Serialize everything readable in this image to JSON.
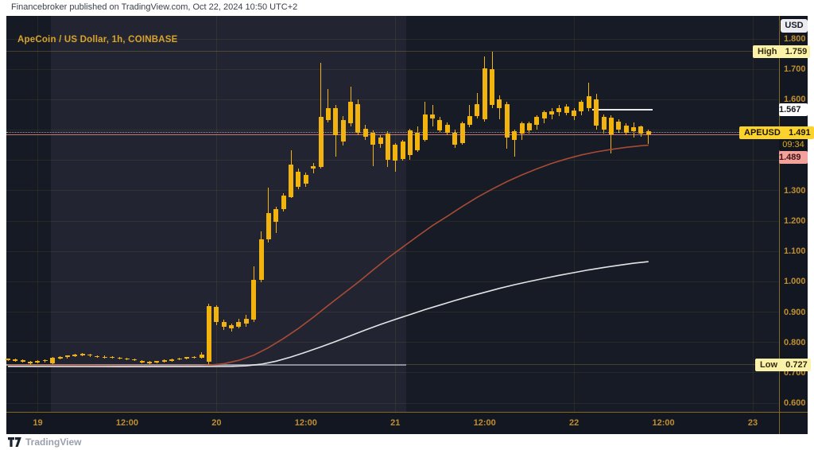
{
  "attribution": "Financebroker published on TradingView.com, Oct 22, 2024 10:50 UTC+2",
  "watermark": "TradingView",
  "header": {
    "title": "ApeCoin / US Dollar, 1h, COINBASE",
    "currency_button": "USD"
  },
  "axis_labels": {
    "high": {
      "text": "High",
      "value": "1.759"
    },
    "low": {
      "text": "Low",
      "value": "0.727"
    },
    "symbol": {
      "text": "APEUSD",
      "value": "1.491",
      "countdown": "09:34"
    },
    "white_line": "1.567",
    "pink_line": "1.489"
  },
  "colors": {
    "panel_bg": "#131722",
    "band_dark_left": "#151a24",
    "band_light": "#222531",
    "band_dark_right": "#161b25",
    "candle": "#f2b30e",
    "ma_fast": "#a84b35",
    "ma_slow": "#e4e4e6",
    "grid": "rgba(196,160,70,0.10)",
    "axis_text": "#c08f2f",
    "low_ray": "#8b8e98",
    "faint_level": "rgba(196,160,70,0.35)",
    "white_segment": "#e8e8e8",
    "pink_level": "#e8837d",
    "current_price": "#9aa0ae"
  },
  "chart_data": {
    "type": "candlestick",
    "title": "ApeCoin / US Dollar, 1h, COINBASE",
    "symbol": "APEUSD",
    "exchange": "COINBASE",
    "interval": "1h",
    "legend_position": "none",
    "grid": true,
    "price_axis": {
      "min": 0.6,
      "max": 1.8,
      "ticks": [
        "1.800",
        "1.700",
        "1.600",
        "1.500",
        "1.400",
        "1.300",
        "1.200",
        "1.100",
        "1.000",
        "0.900",
        "0.800",
        "0.700",
        "0.600"
      ]
    },
    "time_axis": {
      "ticks": [
        {
          "label": "19",
          "h": 4
        },
        {
          "label": "12:00",
          "h": 16
        },
        {
          "label": "20",
          "h": 28
        },
        {
          "label": "12:00",
          "h": 40
        },
        {
          "label": "21",
          "h": 52
        },
        {
          "label": "12:00",
          "h": 64
        },
        {
          "label": "22",
          "h": 76
        },
        {
          "label": "12:00",
          "h": 88
        },
        {
          "label": "23",
          "h": 100
        }
      ]
    },
    "stats": {
      "high": 1.759,
      "low": 0.727,
      "last": 1.491,
      "bar_countdown": "09:34"
    },
    "candles_format": [
      "high",
      "low",
      "body_top",
      "body_bottom"
    ],
    "candles": [
      [
        0.748,
        0.738,
        0.746,
        0.741
      ],
      [
        0.747,
        0.736,
        0.744,
        0.739
      ],
      [
        0.745,
        0.733,
        0.741,
        0.736
      ],
      [
        0.74,
        0.727,
        0.737,
        0.731
      ],
      [
        0.742,
        0.73,
        0.74,
        0.734
      ],
      [
        0.744,
        0.734,
        0.742,
        0.738
      ],
      [
        0.752,
        0.729,
        0.75,
        0.731
      ],
      [
        0.755,
        0.744,
        0.753,
        0.747
      ],
      [
        0.758,
        0.748,
        0.757,
        0.751
      ],
      [
        0.762,
        0.752,
        0.76,
        0.755
      ],
      [
        0.764,
        0.754,
        0.762,
        0.757
      ],
      [
        0.763,
        0.753,
        0.76,
        0.756
      ],
      [
        0.758,
        0.749,
        0.755,
        0.751
      ],
      [
        0.756,
        0.747,
        0.753,
        0.75
      ],
      [
        0.754,
        0.746,
        0.752,
        0.749
      ],
      [
        0.752,
        0.744,
        0.75,
        0.747
      ],
      [
        0.75,
        0.742,
        0.748,
        0.745
      ],
      [
        0.748,
        0.738,
        0.745,
        0.741
      ],
      [
        0.742,
        0.73,
        0.739,
        0.733
      ],
      [
        0.738,
        0.728,
        0.735,
        0.73
      ],
      [
        0.74,
        0.73,
        0.738,
        0.733
      ],
      [
        0.744,
        0.734,
        0.742,
        0.737
      ],
      [
        0.746,
        0.737,
        0.744,
        0.74
      ],
      [
        0.75,
        0.741,
        0.748,
        0.744
      ],
      [
        0.753,
        0.744,
        0.751,
        0.747
      ],
      [
        0.755,
        0.746,
        0.752,
        0.749
      ],
      [
        0.768,
        0.748,
        0.76,
        0.75
      ],
      [
        0.928,
        0.727,
        0.92,
        0.735
      ],
      [
        0.922,
        0.858,
        0.918,
        0.868
      ],
      [
        0.875,
        0.84,
        0.868,
        0.852
      ],
      [
        0.862,
        0.835,
        0.856,
        0.845
      ],
      [
        0.878,
        0.845,
        0.866,
        0.852
      ],
      [
        0.892,
        0.852,
        0.878,
        0.862
      ],
      [
        1.05,
        0.868,
        1.005,
        0.875
      ],
      [
        1.165,
        0.998,
        1.14,
        1.005
      ],
      [
        1.31,
        1.128,
        1.225,
        1.14
      ],
      [
        1.248,
        1.16,
        1.238,
        1.198
      ],
      [
        1.292,
        1.232,
        1.285,
        1.24
      ],
      [
        1.432,
        1.275,
        1.385,
        1.278
      ],
      [
        1.372,
        1.305,
        1.362,
        1.312
      ],
      [
        1.36,
        1.312,
        1.352,
        1.322
      ],
      [
        1.392,
        1.358,
        1.382,
        1.372
      ],
      [
        1.722,
        1.372,
        1.542,
        1.378
      ],
      [
        1.635,
        1.525,
        1.572,
        1.532
      ],
      [
        1.582,
        1.412,
        1.572,
        1.482
      ],
      [
        1.545,
        1.448,
        1.532,
        1.462
      ],
      [
        1.642,
        1.512,
        1.592,
        1.522
      ],
      [
        1.602,
        1.482,
        1.585,
        1.492
      ],
      [
        1.518,
        1.468,
        1.505,
        1.478
      ],
      [
        1.498,
        1.382,
        1.492,
        1.452
      ],
      [
        1.482,
        1.442,
        1.475,
        1.455
      ],
      [
        1.495,
        1.378,
        1.488,
        1.402
      ],
      [
        1.458,
        1.362,
        1.452,
        1.398
      ],
      [
        1.468,
        1.398,
        1.462,
        1.405
      ],
      [
        1.505,
        1.402,
        1.498,
        1.418
      ],
      [
        1.512,
        1.428,
        1.492,
        1.432
      ],
      [
        1.592,
        1.462,
        1.552,
        1.468
      ],
      [
        1.582,
        1.512,
        1.552,
        1.538
      ],
      [
        1.542,
        1.492,
        1.532,
        1.498
      ],
      [
        1.525,
        1.482,
        1.518,
        1.492
      ],
      [
        1.502,
        1.442,
        1.492,
        1.452
      ],
      [
        1.528,
        1.452,
        1.522,
        1.458
      ],
      [
        1.582,
        1.508,
        1.545,
        1.518
      ],
      [
        1.622,
        1.538,
        1.585,
        1.545
      ],
      [
        1.742,
        1.528,
        1.702,
        1.535
      ],
      [
        1.759,
        1.572,
        1.7,
        1.582
      ],
      [
        1.615,
        1.535,
        1.602,
        1.572
      ],
      [
        1.592,
        1.438,
        1.585,
        1.475
      ],
      [
        1.502,
        1.412,
        1.495,
        1.468
      ],
      [
        1.528,
        1.468,
        1.522,
        1.488
      ],
      [
        1.528,
        1.488,
        1.522,
        1.498
      ],
      [
        1.548,
        1.502,
        1.542,
        1.518
      ],
      [
        1.565,
        1.522,
        1.558,
        1.538
      ],
      [
        1.572,
        1.535,
        1.562,
        1.552
      ],
      [
        1.582,
        1.545,
        1.572,
        1.558
      ],
      [
        1.585,
        1.548,
        1.578,
        1.555
      ],
      [
        1.572,
        1.532,
        1.565,
        1.545
      ],
      [
        1.598,
        1.548,
        1.592,
        1.562
      ],
      [
        1.655,
        1.562,
        1.612,
        1.572
      ],
      [
        1.618,
        1.502,
        1.602,
        1.515
      ],
      [
        1.552,
        1.488,
        1.542,
        1.502
      ],
      [
        1.548,
        1.422,
        1.54,
        1.485
      ],
      [
        1.535,
        1.492,
        1.528,
        1.502
      ],
      [
        1.522,
        1.482,
        1.515,
        1.492
      ],
      [
        1.525,
        1.475,
        1.508,
        1.495
      ],
      [
        1.515,
        1.478,
        1.512,
        1.488
      ],
      [
        1.502,
        1.455,
        1.496,
        1.486
      ]
    ],
    "series": [
      {
        "name": "ma_fast_orange",
        "points": [
          [
            0,
            0.724
          ],
          [
            10,
            0.724
          ],
          [
            20,
            0.722
          ],
          [
            26,
            0.723
          ],
          [
            27,
            0.725
          ],
          [
            29,
            0.73
          ],
          [
            31,
            0.741
          ],
          [
            33,
            0.758
          ],
          [
            35,
            0.783
          ],
          [
            37,
            0.813
          ],
          [
            39,
            0.846
          ],
          [
            41,
            0.883
          ],
          [
            43,
            0.922
          ],
          [
            45,
            0.96
          ],
          [
            47,
            0.998
          ],
          [
            49,
            1.038
          ],
          [
            51,
            1.078
          ],
          [
            53,
            1.114
          ],
          [
            55,
            1.15
          ],
          [
            57,
            1.185
          ],
          [
            59,
            1.216
          ],
          [
            61,
            1.248
          ],
          [
            63,
            1.278
          ],
          [
            65,
            1.305
          ],
          [
            67,
            1.33
          ],
          [
            69,
            1.352
          ],
          [
            71,
            1.372
          ],
          [
            73,
            1.39
          ],
          [
            75,
            1.405
          ],
          [
            77,
            1.418
          ],
          [
            79,
            1.428
          ],
          [
            81,
            1.436
          ],
          [
            83,
            1.443
          ],
          [
            85,
            1.448
          ],
          [
            86,
            1.45
          ]
        ]
      },
      {
        "name": "ma_slow_white",
        "points": [
          [
            0,
            0.721
          ],
          [
            15,
            0.72
          ],
          [
            30,
            0.721
          ],
          [
            32,
            0.723
          ],
          [
            34,
            0.728
          ],
          [
            36,
            0.738
          ],
          [
            38,
            0.752
          ],
          [
            40,
            0.768
          ],
          [
            42,
            0.785
          ],
          [
            44,
            0.803
          ],
          [
            46,
            0.822
          ],
          [
            48,
            0.841
          ],
          [
            50,
            0.859
          ],
          [
            52,
            0.876
          ],
          [
            54,
            0.892
          ],
          [
            56,
            0.908
          ],
          [
            58,
            0.923
          ],
          [
            60,
            0.938
          ],
          [
            62,
            0.952
          ],
          [
            64,
            0.965
          ],
          [
            66,
            0.978
          ],
          [
            68,
            0.99
          ],
          [
            70,
            1.001
          ],
          [
            72,
            1.011
          ],
          [
            74,
            1.021
          ],
          [
            76,
            1.03
          ],
          [
            78,
            1.039
          ],
          [
            80,
            1.047
          ],
          [
            82,
            1.054
          ],
          [
            84,
            1.061
          ],
          [
            86,
            1.066
          ]
        ]
      }
    ],
    "levels": [
      {
        "name": "low_ray",
        "price": 0.727,
        "from_h": -0.2,
        "to_h": 53.5,
        "kind": "low_ray"
      },
      {
        "name": "low_faint",
        "price": 0.727,
        "from_h": 53.5,
        "to_h": 103.5,
        "kind": "faint_level"
      },
      {
        "name": "high_faint",
        "price": 1.759,
        "from_h": -0.2,
        "to_h": 103.5,
        "kind": "faint_level"
      },
      {
        "name": "pink_level",
        "price": 1.489,
        "from_h": -0.2,
        "to_h": 103.5,
        "kind": "pink_level"
      },
      {
        "name": "white_segment",
        "price": 1.567,
        "from_h": 78.4,
        "to_h": 86.6,
        "kind": "white_segment"
      },
      {
        "name": "current_price",
        "price": 1.491,
        "from_h": -0.2,
        "to_h": 103.5,
        "kind": "current_price"
      }
    ],
    "session_bands": [
      {
        "from_h": -0.25,
        "to_h": 5.76,
        "tone": "band_dark_left"
      },
      {
        "from_h": 5.76,
        "to_h": 53.5,
        "tone": "band_light"
      },
      {
        "from_h": 53.5,
        "to_h": 103.6,
        "tone": "band_dark_right"
      }
    ]
  }
}
